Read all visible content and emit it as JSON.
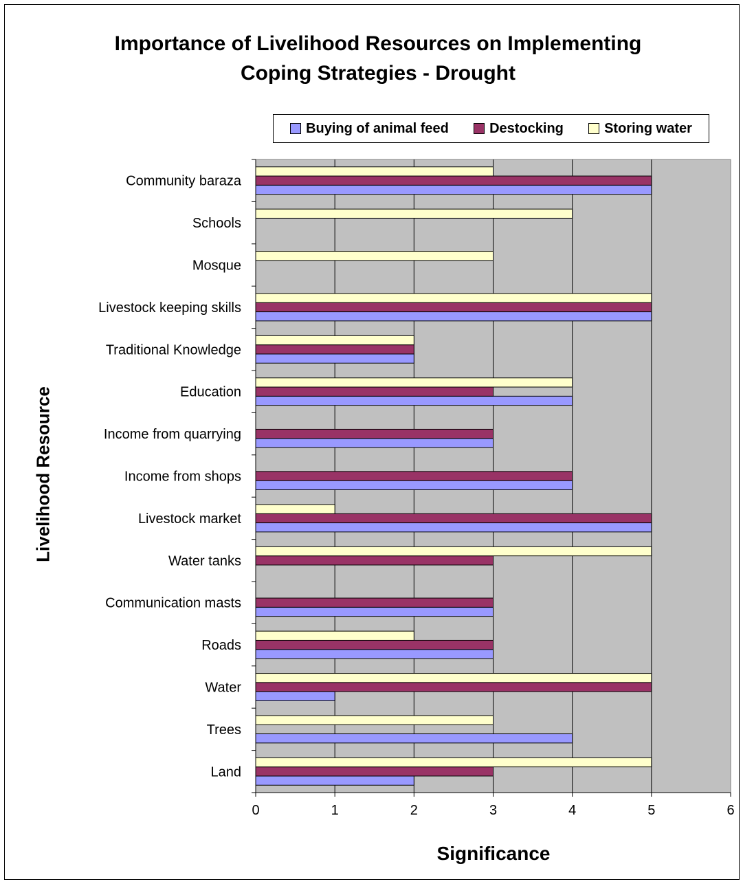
{
  "chart_data": {
    "type": "bar",
    "orientation": "horizontal",
    "title": [
      "Importance of Livelihood Resources on Implementing",
      "Coping Strategies - Drought"
    ],
    "xlabel": "Significance",
    "ylabel": "Livelihood Resource",
    "xlim": [
      0,
      6
    ],
    "xticks": [
      0,
      1,
      2,
      3,
      4,
      5,
      6
    ],
    "grid": "vertical",
    "legend_position": "top",
    "plot_background": "#C0C0C0",
    "categories": [
      "Land",
      "Trees",
      "Water",
      "Roads",
      "Communication masts",
      "Water tanks",
      "Livestock market",
      "Income from shops",
      "Income from quarrying",
      "Education",
      "Traditional Knowledge",
      "Livestock keeping skills",
      "Mosque",
      "Schools",
      "Community baraza"
    ],
    "series": [
      {
        "name": "Buying of animal feed",
        "color": "#9999FF",
        "values": [
          2,
          4,
          1,
          3,
          3,
          null,
          5,
          4,
          3,
          4,
          2,
          5,
          null,
          null,
          5
        ]
      },
      {
        "name": "Destocking",
        "color": "#993366",
        "values": [
          3,
          null,
          5,
          3,
          3,
          3,
          5,
          4,
          3,
          3,
          2,
          5,
          null,
          null,
          5
        ]
      },
      {
        "name": "Storing water",
        "color": "#FFFFCC",
        "values": [
          5,
          3,
          5,
          2,
          null,
          5,
          1,
          null,
          null,
          4,
          2,
          5,
          3,
          4,
          3
        ]
      }
    ]
  }
}
